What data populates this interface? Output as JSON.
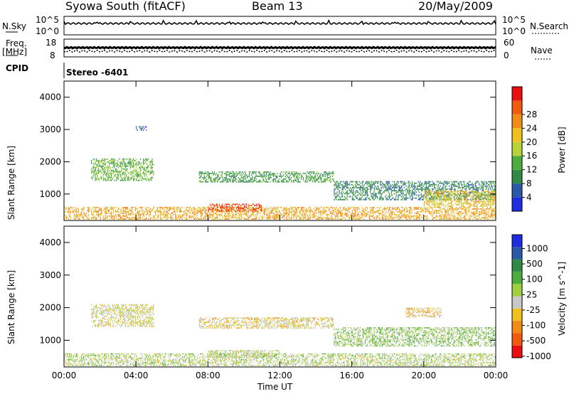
{
  "header": {
    "station": "Syowa South (fitACF)",
    "beam": "Beam 13",
    "date": "20/May/2009"
  },
  "panels": {
    "nsky": {
      "label": "N.Sky",
      "tick_hi": "10^5",
      "tick_lo": "10^0"
    },
    "nsearch": {
      "label": "N.Search",
      "tick_hi": "10^5",
      "tick_lo": "10^0"
    },
    "freq": {
      "label_line1": "Freq.",
      "label_line2": "[MHz]",
      "tick_hi": "18",
      "tick_lo": "8"
    },
    "nave": {
      "label": "Nave",
      "tick_hi": "60",
      "tick_lo": "0"
    },
    "cpid": {
      "label": "CPID",
      "value": "Stereo -6401"
    }
  },
  "colors": {
    "power_scale": [
      "#1f2ce0",
      "#2a59a8",
      "#2f8a45",
      "#4caf3d",
      "#b6d43a",
      "#f0c020",
      "#f08a18",
      "#f05a10",
      "#e81010"
    ],
    "velocity_scale": [
      "#e81010",
      "#f05a10",
      "#f08a18",
      "#f0c020",
      "#c8c8c8",
      "#a0d040",
      "#4caf3d",
      "#2f8a45",
      "#2a59a8",
      "#1f2ce0"
    ]
  },
  "chart_data": [
    {
      "type": "heatmap",
      "name": "power",
      "ylabel": "Slant Range [km]",
      "xlabel": "Time UT",
      "ylim": [
        180,
        4500
      ],
      "yticks": [
        1000,
        2000,
        3000,
        4000
      ],
      "x_ticks": [
        "00:00",
        "04:00",
        "08:00",
        "12:00",
        "16:00",
        "20:00",
        "00:00"
      ],
      "colorbar": {
        "label": "Power [dB]",
        "ticks": [
          "4",
          "8",
          "12",
          "16",
          "20",
          "24",
          "28"
        ],
        "range": [
          0,
          30
        ]
      },
      "echo_regions": [
        {
          "t0": 0.0,
          "t1": 24.0,
          "r0": 200,
          "r1": 600,
          "value": 20
        },
        {
          "t0": 1.5,
          "t1": 5.0,
          "r0": 1400,
          "r1": 2100,
          "value": 12
        },
        {
          "t0": 4.0,
          "t1": 4.6,
          "r0": 2950,
          "r1": 3100,
          "value": 6
        },
        {
          "t0": 7.5,
          "t1": 15.0,
          "r0": 1350,
          "r1": 1700,
          "value": 10
        },
        {
          "t0": 8.0,
          "t1": 11.0,
          "r0": 450,
          "r1": 700,
          "value": 26
        },
        {
          "t0": 15.0,
          "t1": 24.0,
          "r0": 800,
          "r1": 1400,
          "value": 8
        },
        {
          "t0": 20.0,
          "t1": 24.0,
          "r0": 600,
          "r1": 1100,
          "value": 18
        }
      ]
    },
    {
      "type": "heatmap",
      "name": "velocity",
      "ylabel": "Slant Range [km]",
      "xlabel": "Time UT",
      "ylim": [
        180,
        4500
      ],
      "yticks": [
        1000,
        2000,
        3000,
        4000
      ],
      "x_ticks": [
        "00:00",
        "04:00",
        "08:00",
        "12:00",
        "16:00",
        "20:00",
        "00:00"
      ],
      "colorbar": {
        "label": "Velocity [m s^-1]",
        "ticks": [
          "1000",
          "500",
          "100",
          "25",
          "-25",
          "-100",
          "-500",
          "-1000"
        ],
        "range": [
          -1500,
          1500
        ]
      },
      "echo_regions": [
        {
          "t0": 0.0,
          "t1": 24.0,
          "r0": 200,
          "r1": 600,
          "value": 0
        },
        {
          "t0": 1.5,
          "t1": 5.0,
          "r0": 1400,
          "r1": 2100,
          "value": -200
        },
        {
          "t0": 7.5,
          "t1": 15.0,
          "r0": 1350,
          "r1": 1700,
          "value": -300
        },
        {
          "t0": 8.0,
          "t1": 12.0,
          "r0": 450,
          "r1": 700,
          "value": -20
        },
        {
          "t0": 15.0,
          "t1": 24.0,
          "r0": 800,
          "r1": 1400,
          "value": 150
        },
        {
          "t0": 19.0,
          "t1": 21.0,
          "r0": 1700,
          "r1": 2000,
          "value": -400
        }
      ]
    }
  ]
}
